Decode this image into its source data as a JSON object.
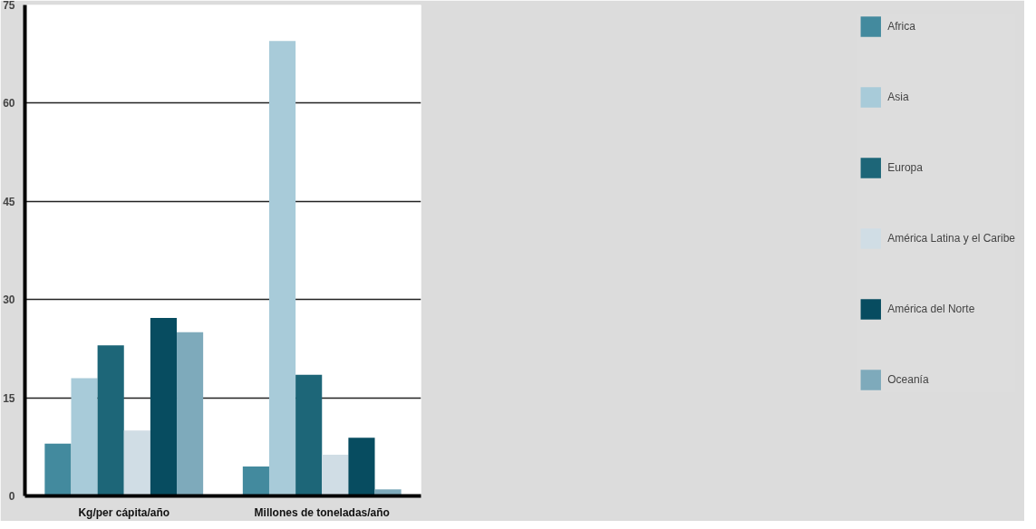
{
  "chart_data": {
    "type": "bar",
    "categories": [
      "Kg/per cápita/año",
      "Millones de toneladas/año"
    ],
    "series": [
      {
        "name": "Africa",
        "color": "#438a9e",
        "values": [
          8.0,
          4.5
        ]
      },
      {
        "name": "Asia",
        "color": "#a8cbd9",
        "values": [
          18.0,
          69.5
        ]
      },
      {
        "name": "Europa",
        "color": "#1d6678",
        "values": [
          23.0,
          18.5
        ]
      },
      {
        "name": "América Latina y el Caribe",
        "color": "#d0dde5",
        "values": [
          10.0,
          6.3
        ]
      },
      {
        "name": "América del Norte",
        "color": "#074c60",
        "values": [
          27.2,
          8.9
        ]
      },
      {
        "name": "Oceanía",
        "color": "#7eaabb",
        "values": [
          25.0,
          1.0
        ]
      }
    ],
    "ylim": [
      0,
      75
    ],
    "yticks": [
      0,
      15,
      30,
      45,
      60,
      75
    ],
    "grid": "y",
    "legend": "right"
  }
}
